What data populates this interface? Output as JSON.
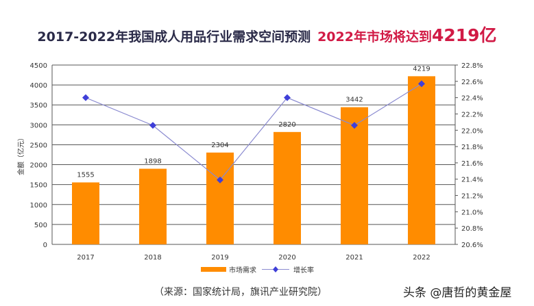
{
  "title": {
    "main": "2017-2022年我国成人用品行业需求空间预测",
    "highlight": "2022年市场将达到",
    "highlight_value": "4219亿"
  },
  "chart_data": {
    "type": "bar",
    "categories": [
      "2017",
      "2018",
      "2019",
      "2020",
      "2021",
      "2022"
    ],
    "series": [
      {
        "name": "市场需求",
        "type": "bar",
        "axis": "left",
        "color": "#ff8c00",
        "values": [
          1555,
          1898,
          2304,
          2820,
          3442,
          4219
        ],
        "labels": [
          "1555",
          "1898",
          "2304",
          "2820",
          "3442",
          "4219"
        ]
      },
      {
        "name": "增长率",
        "type": "line",
        "axis": "right",
        "color": "#3f3fd8",
        "line_color": "#8a8ad0",
        "values": [
          22.4,
          22.06,
          21.39,
          22.4,
          22.06,
          22.57
        ]
      }
    ],
    "ylabel": "金额（亿元）",
    "ylim": [
      0,
      4500
    ],
    "yticks": [
      "0",
      "500",
      "1000",
      "1500",
      "2000",
      "2500",
      "3000",
      "3500",
      "4000",
      "4500"
    ],
    "y2lim": [
      20.6,
      22.8
    ],
    "y2ticks": [
      "20.6%",
      "20.8%",
      "21.0%",
      "21.2%",
      "21.4%",
      "21.6%",
      "21.8%",
      "22.0%",
      "22.2%",
      "22.4%",
      "22.6%",
      "22.8%"
    ],
    "grid": true,
    "legend": "bottom"
  },
  "source": "（来源：国家统计局，旗讯产业研究院）",
  "watermark": "头条 @唐哲的黄金屋"
}
